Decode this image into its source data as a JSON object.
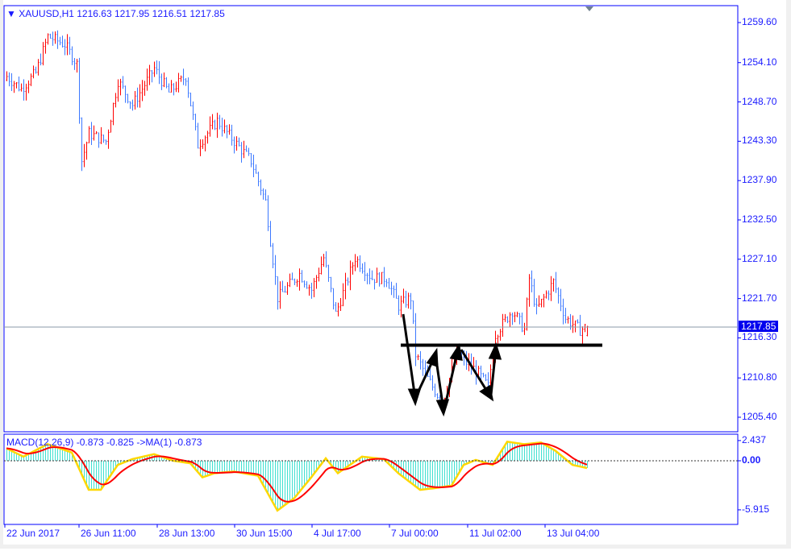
{
  "window": {
    "symbol_header": "XAUUSD,H1  1216.63 1217.95 1216.51 1217.85"
  },
  "price_axis": {
    "ticks": [
      "1259.60",
      "1254.10",
      "1248.70",
      "1243.30",
      "1237.90",
      "1232.50",
      "1227.10",
      "1221.70",
      "1216.30",
      "1210.80",
      "1205.40"
    ],
    "current": "1217.85"
  },
  "macd_axis": {
    "ticks": [
      "2.437",
      "0.00",
      "-5.915"
    ]
  },
  "time_axis": {
    "ticks": [
      "22 Jun 2017",
      "26 Jun 11:00",
      "28 Jun 13:00",
      "30 Jun 15:00",
      "4 Jul 17:00",
      "7 Jul 00:00",
      "11 Jul 02:00",
      "13 Jul 04:00"
    ]
  },
  "macd": {
    "header": "MACD(12,26,9) -0.873 -0.825  ->MA(1) -0.873"
  },
  "colors": {
    "bull": "#ff0000",
    "bear": "#3c78ff",
    "axis": "#0000ff",
    "histogram": "#40e0d0",
    "macd_line": "#ffd700",
    "signal_line": "#ff0000",
    "neckline": "#000000"
  },
  "chart_data": {
    "type": "candlestick",
    "symbol": "XAUUSD",
    "timeframe": "H1",
    "ylim": [
      1203,
      1262
    ],
    "close_waypoints": [
      [
        0,
        1252.2
      ],
      [
        6,
        1250.5
      ],
      [
        12,
        1252.7
      ],
      [
        17,
        1257.7
      ],
      [
        24,
        1256.6
      ],
      [
        29,
        1253.9
      ],
      [
        31,
        1240.6
      ],
      [
        34,
        1244.4
      ],
      [
        41,
        1243.3
      ],
      [
        46,
        1251.6
      ],
      [
        52,
        1248.3
      ],
      [
        61,
        1253.3
      ],
      [
        67,
        1250
      ],
      [
        74,
        1252.2
      ],
      [
        79,
        1242.8
      ],
      [
        87,
        1246.1
      ],
      [
        94,
        1243.3
      ],
      [
        101,
        1240.6
      ],
      [
        107,
        1235
      ],
      [
        112,
        1221.8
      ],
      [
        121,
        1225.1
      ],
      [
        126,
        1222.9
      ],
      [
        131,
        1227.3
      ],
      [
        136,
        1219.6
      ],
      [
        144,
        1227.3
      ],
      [
        151,
        1224.5
      ],
      [
        157,
        1224.5
      ],
      [
        162,
        1220.7
      ],
      [
        167,
        1221.8
      ],
      [
        169,
        1214
      ],
      [
        174,
        1210.7
      ],
      [
        180,
        1207.4
      ],
      [
        186,
        1214
      ],
      [
        194,
        1211.8
      ],
      [
        199,
        1209.6
      ],
      [
        202,
        1216.8
      ],
      [
        209,
        1220.1
      ],
      [
        214,
        1217.4
      ],
      [
        216,
        1224.5
      ],
      [
        219,
        1220.1
      ],
      [
        226,
        1224
      ],
      [
        231,
        1219
      ],
      [
        237,
        1217.4
      ],
      [
        240,
        1217.85
      ]
    ],
    "last_bar": {
      "open": 1216.63,
      "high": 1217.95,
      "low": 1216.51,
      "close": 1217.85
    },
    "neckline_price": 1215.3,
    "macd_waypoints": [
      [
        0,
        1.5
      ],
      [
        7,
        0.5
      ],
      [
        17,
        2.0
      ],
      [
        27,
        1.0
      ],
      [
        34,
        -3.5
      ],
      [
        39,
        -3.5
      ],
      [
        46,
        -0.5
      ],
      [
        52,
        0.2
      ],
      [
        61,
        0.8
      ],
      [
        69,
        0
      ],
      [
        76,
        -0.3
      ],
      [
        81,
        -2.0
      ],
      [
        86,
        -1.5
      ],
      [
        94,
        -1.3
      ],
      [
        104,
        -1.8
      ],
      [
        112,
        -6.0
      ],
      [
        119,
        -4.5
      ],
      [
        126,
        -2.0
      ],
      [
        132,
        0.3
      ],
      [
        137,
        -1.5
      ],
      [
        147,
        0.5
      ],
      [
        156,
        0.2
      ],
      [
        162,
        -1.5
      ],
      [
        171,
        -3.5
      ],
      [
        177,
        -3.3
      ],
      [
        184,
        -3.0
      ],
      [
        189,
        -0.5
      ],
      [
        194,
        0.1
      ],
      [
        201,
        -0.5
      ],
      [
        207,
        2.3
      ],
      [
        214,
        2.0
      ],
      [
        221,
        2.2
      ],
      [
        227,
        1.2
      ],
      [
        234,
        -0.5
      ],
      [
        240,
        -0.873
      ]
    ],
    "macd_ylim": [
      -5.915,
      2.437
    ]
  }
}
